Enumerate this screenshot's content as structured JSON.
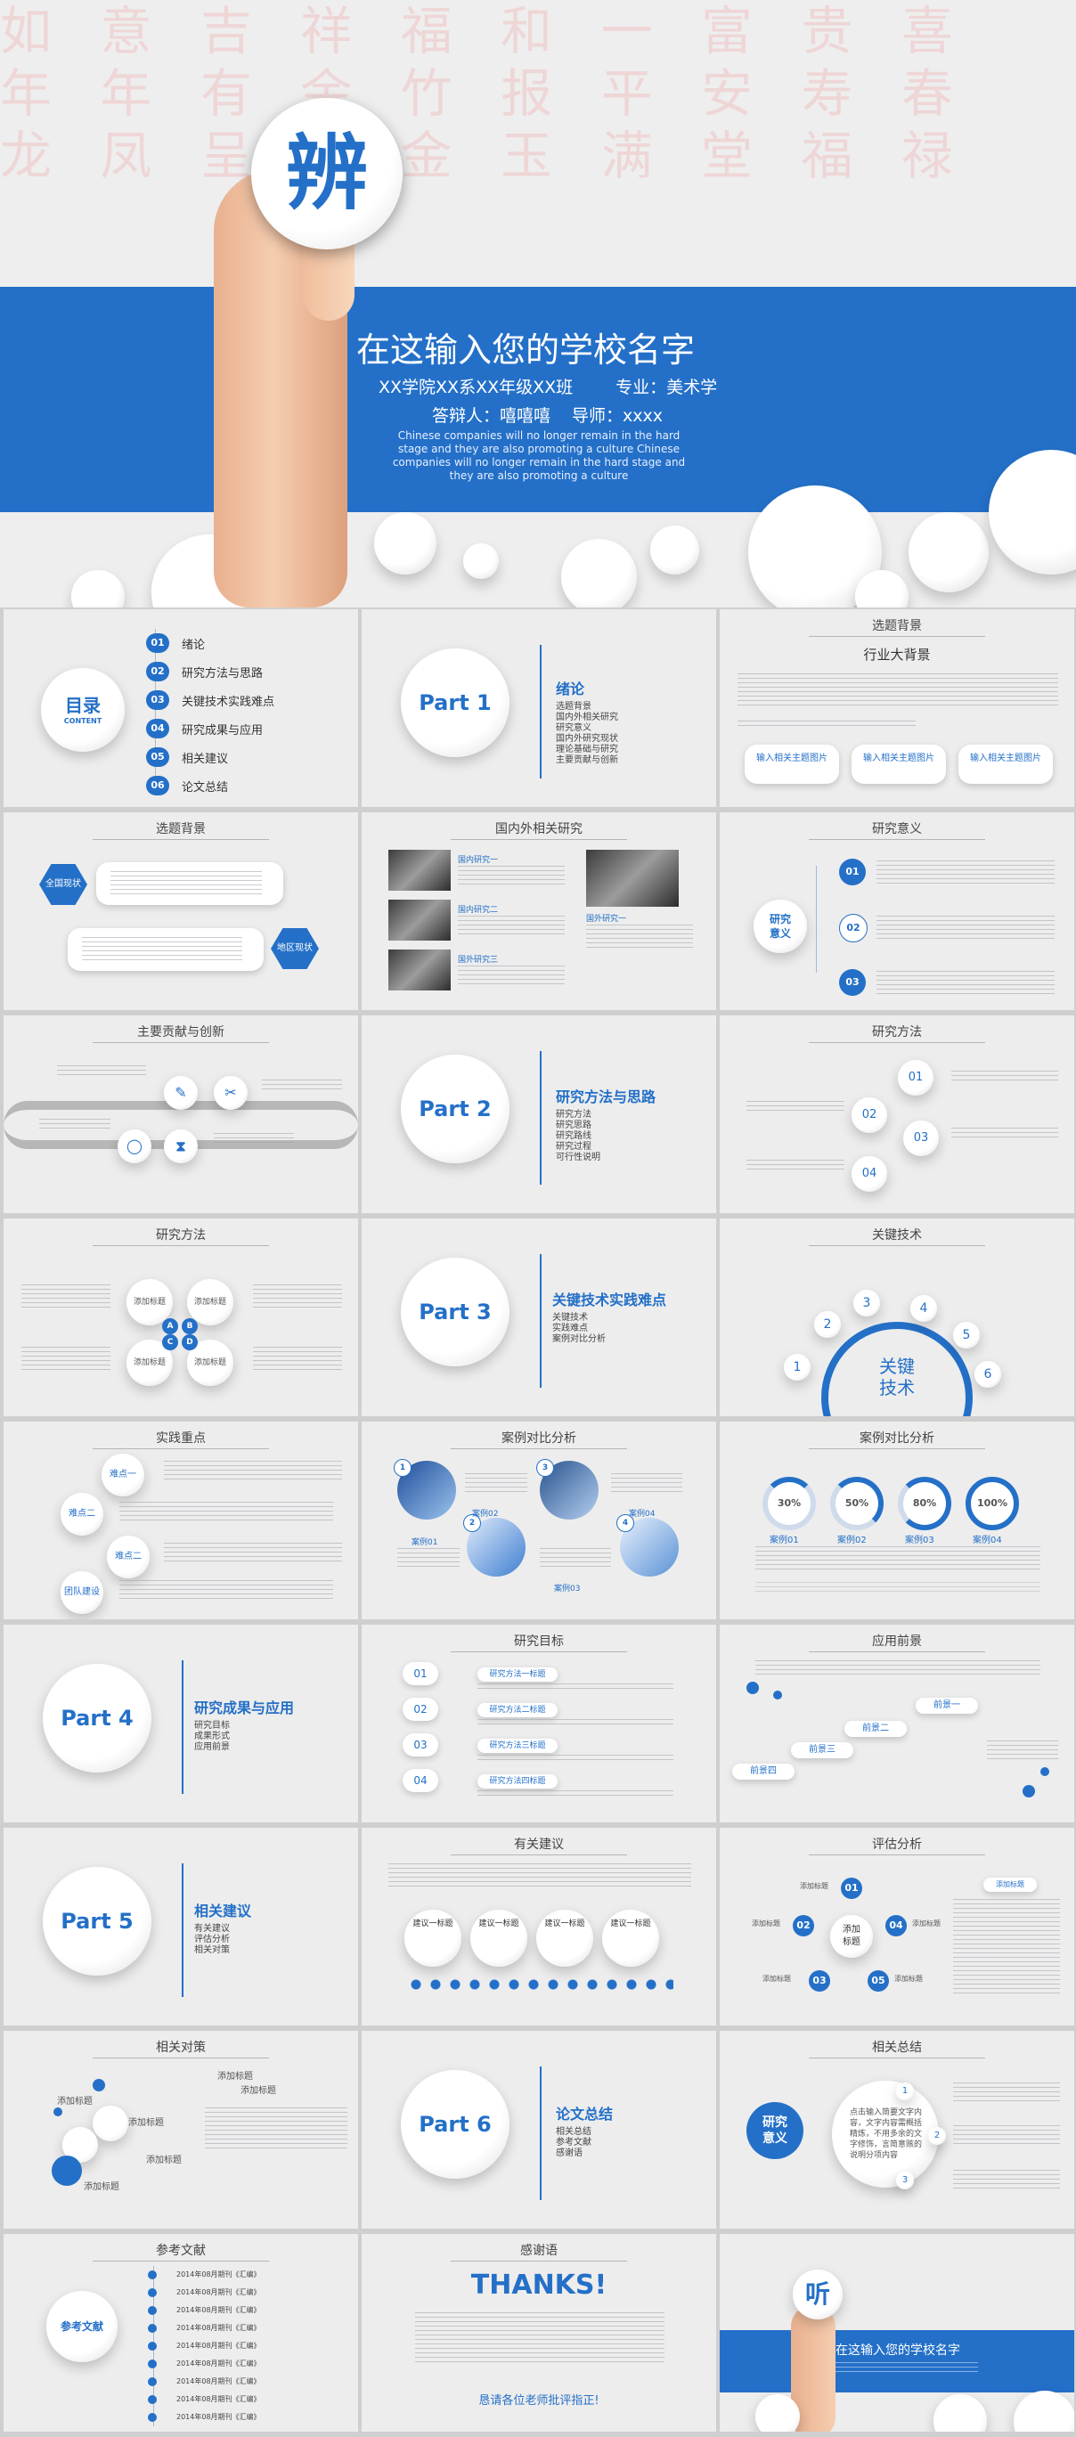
{
  "hero": {
    "badge_char": "辨",
    "school": "在这输入您的学校名字",
    "class_line": "XX学院XX系XX年级XX班",
    "major": "专业：美术学",
    "defender": "答辩人：嘻嘻嘻",
    "advisor": "导师：xxxx",
    "english": "Chinese companies will no longer remain in the hard stage and they are also promoting a culture Chinese companies will no longer remain in the hard stage and they are also promoting a culture",
    "bg_chars": "如 意 吉 祥 福 和 一 富 贵 喜\n年 年 有 余 竹 报 平 安 寿 春\n龙 凤 呈 祥 金 玉 满 堂 福 禄"
  },
  "toc": {
    "label": "目录",
    "label_en": "CONTENT",
    "items": [
      {
        "num": "01",
        "text": "绪论"
      },
      {
        "num": "02",
        "text": "研究方法与思路"
      },
      {
        "num": "03",
        "text": "关键技术实践难点"
      },
      {
        "num": "04",
        "text": "研究成果与应用"
      },
      {
        "num": "05",
        "text": "相关建议"
      },
      {
        "num": "06",
        "text": "论文总结"
      }
    ]
  },
  "part1": {
    "title": "Part 1",
    "heading": "绪论",
    "items": [
      "选题背景",
      "国内外相关研究",
      "研究意义",
      "国内外研究现状",
      "理论基础与研究",
      "主要贡献与创新"
    ]
  },
  "part2": {
    "title": "Part 2",
    "heading": "研究方法与思路",
    "items": [
      "研究方法",
      "研究思路",
      "研究路线",
      "研究过程",
      "可行性说明"
    ]
  },
  "part3": {
    "title": "Part 3",
    "heading": "关键技术实践难点",
    "items": [
      "关键技术",
      "实践难点",
      "案例对比分析"
    ]
  },
  "part4": {
    "title": "Part 4",
    "heading": "研究成果与应用",
    "items": [
      "研究目标",
      "成果形式",
      "应用前景"
    ]
  },
  "part5": {
    "title": "Part 5",
    "heading": "相关建议",
    "items": [
      "有关建议",
      "评估分析",
      "相关对策"
    ]
  },
  "part6": {
    "title": "Part 6",
    "heading": "论文总结",
    "items": [
      "相关总结",
      "参考文献",
      "感谢语"
    ]
  },
  "slides": {
    "bg1": {
      "title": "选题背景",
      "sub": "行业大背景",
      "btns": [
        "输入相关主题图片",
        "输入相关主题图片",
        "输入相关主题图片"
      ]
    },
    "bg2": {
      "title": "选题背景",
      "tags": [
        "全国现状",
        "地区现状"
      ]
    },
    "domestic": {
      "title": "国内外相关研究",
      "items": [
        "国内研究一",
        "国内研究二",
        "国外研究三",
        "国外研究一"
      ]
    },
    "meaning": {
      "title": "研究意义",
      "center": "研究意义",
      "nums": [
        "01",
        "02",
        "03"
      ]
    },
    "contrib": {
      "title": "主要贡献与创新"
    },
    "method1": {
      "title": "研究方法",
      "nums": [
        "01",
        "02",
        "03",
        "04"
      ]
    },
    "method2": {
      "title": "研究方法",
      "center_letters": [
        "A",
        "B",
        "C",
        "D"
      ],
      "tag": "添加标题"
    },
    "keytech": {
      "title": "关键技术",
      "center": "关键技术",
      "nums": [
        "1",
        "2",
        "3",
        "4",
        "5",
        "6"
      ]
    },
    "practice": {
      "title": "实践重点",
      "tags": [
        "难点一",
        "难点二",
        "难点二",
        "团队建设"
      ]
    },
    "case1": {
      "title": "案例对比分析",
      "labels": [
        "案例01",
        "案例02",
        "案例03",
        "案例04"
      ],
      "nums": [
        "1",
        "2",
        "3",
        "4"
      ]
    },
    "case2": {
      "title": "案例对比分析",
      "pcts": [
        "30%",
        "50%",
        "80%",
        "100%"
      ],
      "labels": [
        "案例01",
        "案例02",
        "案例03",
        "案例04"
      ]
    },
    "goal": {
      "title": "研究目标",
      "nums": [
        "01",
        "02",
        "03",
        "04"
      ],
      "labels": [
        "研究方法一标题",
        "研究方法二标题",
        "研究方法三标题",
        "研究方法四标题"
      ]
    },
    "prospect": {
      "title": "应用前景",
      "labels": [
        "前景一",
        "前景二",
        "前景三",
        "前景四"
      ]
    },
    "advice": {
      "title": "有关建议",
      "circles": [
        "建议一标题",
        "建议一标题",
        "建议一标题",
        "建议一标题"
      ]
    },
    "evaluate": {
      "title": "评估分析",
      "center": "添加标题",
      "nums": [
        "01",
        "02",
        "03",
        "04",
        "05"
      ],
      "labels": [
        "添加标题",
        "添加标题",
        "添加标题",
        "添加标题",
        "添加标题",
        "添加标题"
      ]
    },
    "measures": {
      "title": "相关对策",
      "labels": [
        "添加标题",
        "添加标题",
        "添加标题",
        "添加标题",
        "添加标题",
        "添加标题"
      ]
    },
    "summary": {
      "title": "相关总结",
      "center": "研究意义",
      "sub": "点击输入简要文字内容，文字内容需概括精炼，不用多余的文字修饰，言简意赅的说明分项内容",
      "nums": [
        "1",
        "2",
        "3"
      ]
    },
    "refs": {
      "title": "参考文献",
      "center": "参考文献",
      "items": [
        "2014年08月期刊《汇编》",
        "2014年08月期刊《汇编》",
        "2014年08月期刊《汇编》",
        "2014年08月期刊《汇编》",
        "2014年08月期刊《汇编》",
        "2014年08月期刊《汇编》",
        "2014年08月期刊《汇编》",
        "2014年08月期刊《汇编》",
        "2014年08月期刊《汇编》"
      ]
    },
    "thanks": {
      "title": "感谢语",
      "big": "THANKS!",
      "footer": "恳请各位老师批评指正!"
    },
    "end": {
      "badge": "听",
      "school": "在这输入您的学校名字"
    }
  },
  "colors": {
    "accent": "#2470c8",
    "bg": "#ededed"
  }
}
